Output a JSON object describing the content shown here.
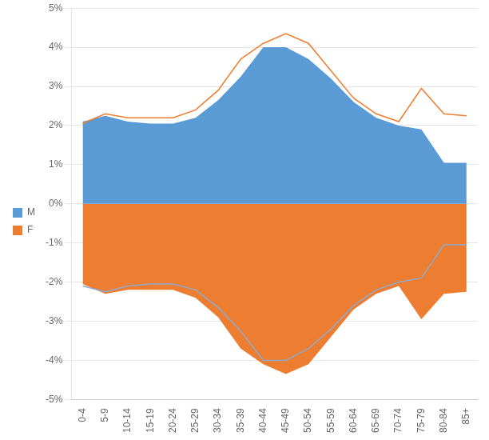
{
  "chart_data": {
    "type": "area",
    "categories": [
      "0-4",
      "5-9",
      "10-14",
      "15-19",
      "20-24",
      "25-29",
      "30-34",
      "35-39",
      "40-44",
      "45-49",
      "50-54",
      "55-59",
      "60-64",
      "65-69",
      "70-74",
      "75-79",
      "80-84",
      "85+"
    ],
    "series": [
      {
        "name": "M",
        "type": "area",
        "color": "#5B9BD5",
        "values": [
          2.1,
          2.25,
          2.1,
          2.05,
          2.05,
          2.2,
          2.65,
          3.25,
          4.0,
          4.0,
          3.7,
          3.2,
          2.6,
          2.2,
          2.0,
          1.9,
          1.05,
          1.05
        ]
      },
      {
        "name": "F",
        "type": "area",
        "color": "#ED7D31",
        "values": [
          -2.05,
          -2.3,
          -2.2,
          -2.2,
          -2.2,
          -2.4,
          -2.9,
          -3.7,
          -4.1,
          -4.35,
          -4.1,
          -3.4,
          -2.7,
          -2.3,
          -2.1,
          -2.95,
          -2.3,
          -2.25
        ]
      },
      {
        "type": "line",
        "color": "#ED7D31",
        "values": [
          2.05,
          2.3,
          2.2,
          2.2,
          2.2,
          2.4,
          2.9,
          3.7,
          4.1,
          4.35,
          4.1,
          3.4,
          2.7,
          2.3,
          2.1,
          2.95,
          2.3,
          2.25
        ]
      },
      {
        "type": "line",
        "color": "#8EAACC",
        "values": [
          -2.1,
          -2.25,
          -2.1,
          -2.05,
          -2.05,
          -2.2,
          -2.65,
          -3.25,
          -4.0,
          -4.0,
          -3.7,
          -3.2,
          -2.6,
          -2.2,
          -2.0,
          -1.9,
          -1.05,
          -1.05
        ]
      }
    ],
    "ylim": [
      -5,
      5
    ],
    "yticks": [
      {
        "value": -5,
        "label": "-5%"
      },
      {
        "value": -4,
        "label": "-4%"
      },
      {
        "value": -3,
        "label": "-3%"
      },
      {
        "value": -2,
        "label": "-2%"
      },
      {
        "value": -1,
        "label": "-1%"
      },
      {
        "value": 0,
        "label": "0%"
      },
      {
        "value": 1,
        "label": "1%"
      },
      {
        "value": 2,
        "label": "2%"
      },
      {
        "value": 3,
        "label": "3%"
      },
      {
        "value": 4,
        "label": "4%"
      },
      {
        "value": 5,
        "label": "5%"
      }
    ],
    "grid": true,
    "legend": "left"
  }
}
